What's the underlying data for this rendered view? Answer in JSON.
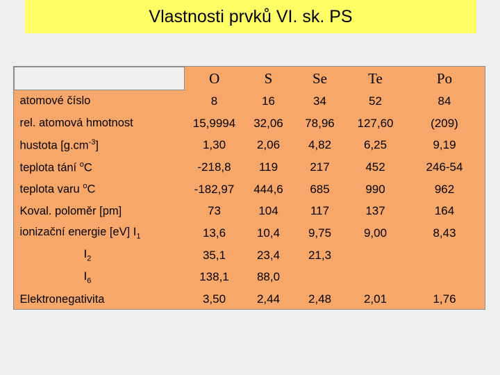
{
  "title": "Vlastnosti prvků VI. sk. PS",
  "columns": [
    "O",
    "S",
    "Se",
    "Te",
    "Po"
  ],
  "rows": [
    {
      "label": "atomové číslo",
      "values": [
        "8",
        "16",
        "34",
        "52",
        "84"
      ]
    },
    {
      "label": "rel. atomová hmotnost",
      "values": [
        "15,9994",
        "32,06",
        "78,96",
        "127,60",
        "(209)"
      ]
    },
    {
      "label_pre": "hustota  [g.cm",
      "label_sup": "-3",
      "label_post": "]",
      "values": [
        "1,30",
        "2,06",
        "4,82",
        "6,25",
        "9,19"
      ]
    },
    {
      "label_pre": "teplota tání  ",
      "label_sup": "o",
      "label_post": "C",
      "values": [
        "-218,8",
        "119",
        "217",
        "452",
        "246-54"
      ]
    },
    {
      "label_pre": "teplota varu  ",
      "label_sup": "o",
      "label_post": "C",
      "values": [
        "-182,97",
        "444,6",
        "685",
        "990",
        "962"
      ]
    },
    {
      "label": "Koval. poloměr [pm]",
      "values": [
        "73",
        "104",
        "117",
        "137",
        "164"
      ]
    },
    {
      "label_pre": "ionizační energie [eV]  I",
      "label_sub": "1",
      "values": [
        "13,6",
        "10,4",
        "9,75",
        "9,00",
        "8,43"
      ]
    },
    {
      "label_pre": "I",
      "label_sub": "2",
      "values": [
        "35,1",
        "23,4",
        "21,3",
        "",
        ""
      ]
    },
    {
      "label_pre": "I",
      "label_sub": "6",
      "values": [
        "138,1",
        "88,0",
        "",
        "",
        ""
      ]
    },
    {
      "label": "Elektronegativita",
      "values": [
        "3,50",
        "2,44",
        "2,48",
        "2,01",
        "1,76"
      ]
    }
  ]
}
